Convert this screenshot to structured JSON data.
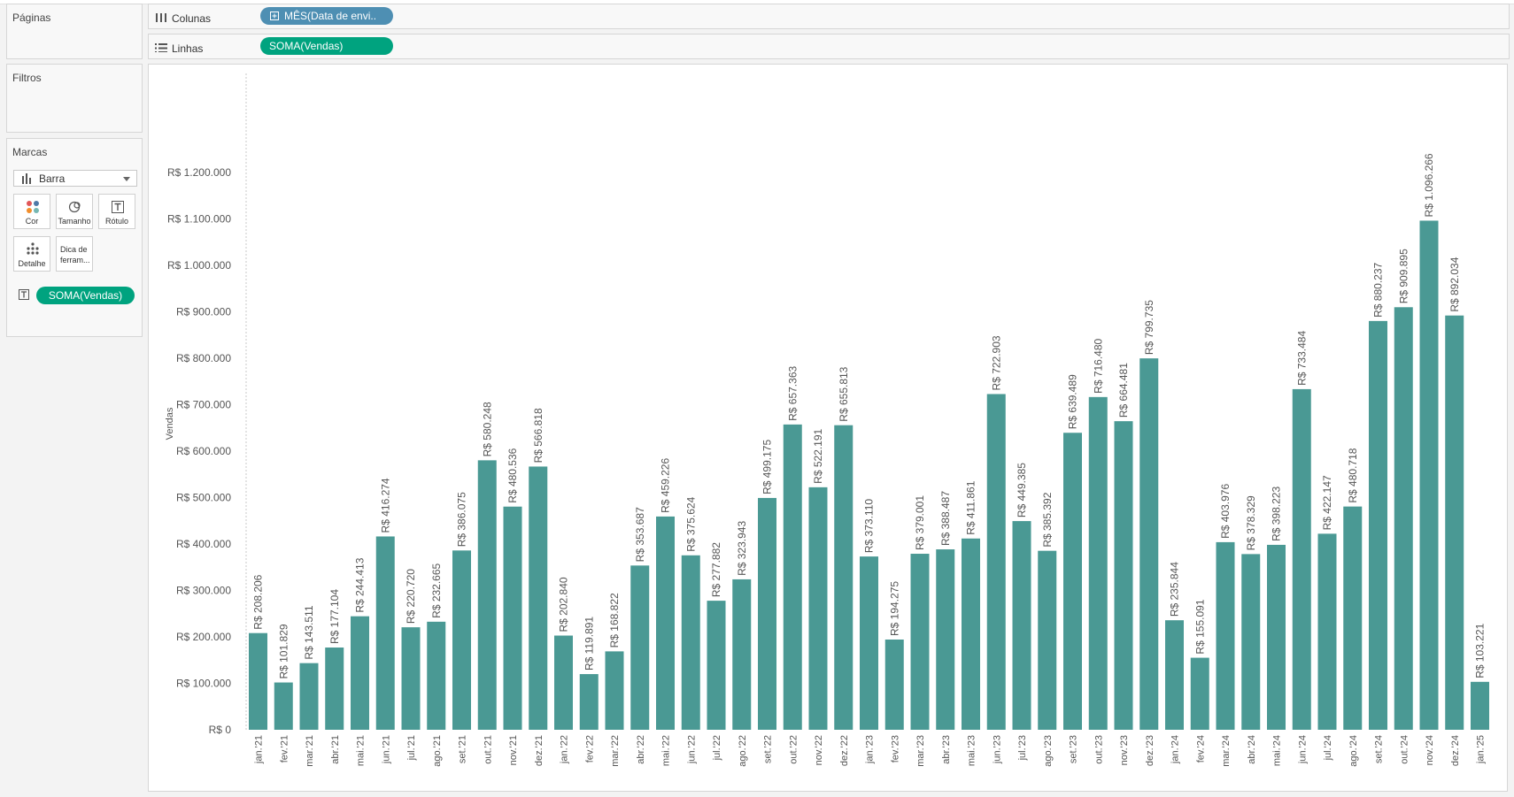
{
  "panels": {
    "paginas": {
      "title": "Páginas"
    },
    "filtros": {
      "title": "Filtros"
    },
    "marcas": {
      "title": "Marcas",
      "mark_type": "Barra",
      "buttons": {
        "cor": "Cor",
        "tamanho": "Tamanho",
        "rotulo": "Rótulo",
        "detalhe": "Detalhe",
        "dica_line1": "Dica de",
        "dica_line2": "ferram..."
      },
      "label_pill": "SOMA(Vendas)"
    }
  },
  "shelves": {
    "colunas": {
      "label": "Colunas",
      "pill": "MÊS(Data de envi.."
    },
    "linhas": {
      "label": "Linhas",
      "pill": "SOMA(Vendas)"
    }
  },
  "colors": {
    "bar": "#4a9994",
    "pill_blue": "#4e8fb3",
    "pill_green": "#00a37f"
  },
  "chart_data": {
    "type": "bar",
    "ylabel": "Vendas",
    "xlabel": "",
    "ylim": [
      0,
      1250000
    ],
    "y_ticks": [
      0,
      100000,
      200000,
      300000,
      400000,
      500000,
      600000,
      700000,
      800000,
      900000,
      1000000,
      1100000,
      1200000
    ],
    "y_tick_labels": [
      "R$ 0",
      "R$ 100.000",
      "R$ 200.000",
      "R$ 300.000",
      "R$ 400.000",
      "R$ 500.000",
      "R$ 600.000",
      "R$ 700.000",
      "R$ 800.000",
      "R$ 900.000",
      "R$ 1.000.000",
      "R$ 1.100.000",
      "R$ 1.200.000"
    ],
    "categories": [
      "jan.'21",
      "fev.'21",
      "mar.'21",
      "abr.'21",
      "mai.'21",
      "jun.'21",
      "jul.'21",
      "ago.'21",
      "set.'21",
      "out.'21",
      "nov.'21",
      "dez.'21",
      "jan.'22",
      "fev.'22",
      "mar.'22",
      "abr.'22",
      "mai.'22",
      "jun.'22",
      "jul.'22",
      "ago.'22",
      "set.'22",
      "out.'22",
      "nov.'22",
      "dez.'22",
      "jan.'23",
      "fev.'23",
      "mar.'23",
      "abr.'23",
      "mai.'23",
      "jun.'23",
      "jul.'23",
      "ago.'23",
      "set.'23",
      "out.'23",
      "nov.'23",
      "dez.'23",
      "jan.'24",
      "fev.'24",
      "mar.'24",
      "abr.'24",
      "mai.'24",
      "jun.'24",
      "jul.'24",
      "ago.'24",
      "set.'24",
      "out.'24",
      "nov.'24",
      "dez.'24",
      "jan.'25"
    ],
    "values": [
      208206,
      101829,
      143511,
      177104,
      244413,
      416274,
      220720,
      232665,
      386075,
      580248,
      480536,
      566818,
      202840,
      119891,
      168822,
      353687,
      459226,
      375624,
      277882,
      323943,
      499175,
      657363,
      522191,
      655813,
      373110,
      194275,
      379001,
      388487,
      411861,
      722903,
      449385,
      385392,
      639489,
      716480,
      664481,
      799735,
      235844,
      155091,
      403976,
      378329,
      398223,
      733484,
      422147,
      480718,
      880237,
      909895,
      1096266,
      892034,
      103221
    ],
    "data_labels": [
      "R$ 208.206",
      "R$ 101.829",
      "R$ 143.511",
      "R$ 177.104",
      "R$ 244.413",
      "R$ 416.274",
      "R$ 220.720",
      "R$ 232.665",
      "R$ 386.075",
      "R$ 580.248",
      "R$ 480.536",
      "R$ 566.818",
      "R$ 202.840",
      "R$ 119.891",
      "R$ 168.822",
      "R$ 353.687",
      "R$ 459.226",
      "R$ 375.624",
      "R$ 277.882",
      "R$ 323.943",
      "R$ 499.175",
      "R$ 657.363",
      "R$ 522.191",
      "R$ 655.813",
      "R$ 373.110",
      "R$ 194.275",
      "R$ 379.001",
      "R$ 388.487",
      "R$ 411.861",
      "R$ 722.903",
      "R$ 449.385",
      "R$ 385.392",
      "R$ 639.489",
      "R$ 716.480",
      "R$ 664.481",
      "R$ 799.735",
      "R$ 235.844",
      "R$ 155.091",
      "R$ 403.976",
      "R$ 378.329",
      "R$ 398.223",
      "R$ 733.484",
      "R$ 422.147",
      "R$ 480.718",
      "R$ 880.237",
      "R$ 909.895",
      "R$ 1.096.266",
      "R$ 892.034",
      "R$ 103.221"
    ]
  }
}
